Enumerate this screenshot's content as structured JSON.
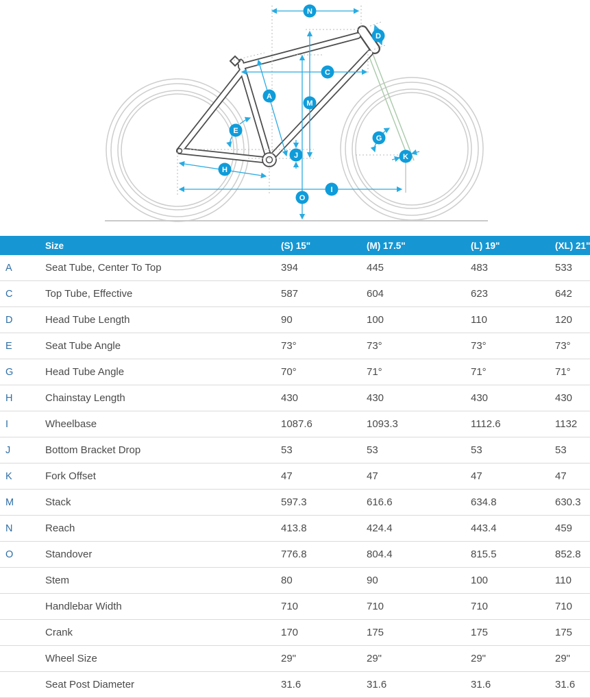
{
  "diagram": {
    "labels": {
      "a": "A",
      "c": "C",
      "d": "D",
      "e": "E",
      "g": "G",
      "h": "H",
      "i": "I",
      "j": "J",
      "k": "K",
      "m": "M",
      "n": "N",
      "o": "O"
    },
    "colors": {
      "dimension_blue": "#29abe2",
      "label_circle_blue": "#0f9cda",
      "frame_outline": "#4d4d4d",
      "wheel_gray": "#cdcdcd",
      "fork_green": "#a9c9a9",
      "reference_gray": "#b9b9b9"
    }
  },
  "table": {
    "header_bg": "#1697d3",
    "columns": [
      {
        "label": "Size"
      },
      {
        "label": "(S) 15\""
      },
      {
        "label": "(M) 17.5\""
      },
      {
        "label": "(L) 19\""
      },
      {
        "label": "(XL) 21\""
      }
    ],
    "rows": [
      {
        "letter": "A",
        "label": "Seat Tube, Center To Top",
        "values": [
          "394",
          "445",
          "483",
          "533"
        ]
      },
      {
        "letter": "C",
        "label": "Top Tube, Effective",
        "values": [
          "587",
          "604",
          "623",
          "642"
        ]
      },
      {
        "letter": "D",
        "label": "Head Tube Length",
        "values": [
          "90",
          "100",
          "110",
          "120"
        ]
      },
      {
        "letter": "E",
        "label": "Seat Tube Angle",
        "values": [
          "73°",
          "73°",
          "73°",
          "73°"
        ]
      },
      {
        "letter": "G",
        "label": "Head Tube Angle",
        "values": [
          "70°",
          "71°",
          "71°",
          "71°"
        ]
      },
      {
        "letter": "H",
        "label": "Chainstay Length",
        "values": [
          "430",
          "430",
          "430",
          "430"
        ]
      },
      {
        "letter": "I",
        "label": "Wheelbase",
        "values": [
          "1087.6",
          "1093.3",
          "1112.6",
          "1132"
        ]
      },
      {
        "letter": "J",
        "label": "Bottom Bracket Drop",
        "values": [
          "53",
          "53",
          "53",
          "53"
        ]
      },
      {
        "letter": "K",
        "label": "Fork Offset",
        "values": [
          "47",
          "47",
          "47",
          "47"
        ]
      },
      {
        "letter": "M",
        "label": "Stack",
        "values": [
          "597.3",
          "616.6",
          "634.8",
          "630.3"
        ]
      },
      {
        "letter": "N",
        "label": "Reach",
        "values": [
          "413.8",
          "424.4",
          "443.4",
          "459"
        ]
      },
      {
        "letter": "O",
        "label": "Standover",
        "values": [
          "776.8",
          "804.4",
          "815.5",
          "852.8"
        ]
      },
      {
        "letter": "",
        "label": "Stem",
        "values": [
          "80",
          "90",
          "100",
          "110"
        ]
      },
      {
        "letter": "",
        "label": "Handlebar Width",
        "values": [
          "710",
          "710",
          "710",
          "710"
        ]
      },
      {
        "letter": "",
        "label": "Crank",
        "values": [
          "170",
          "175",
          "175",
          "175"
        ]
      },
      {
        "letter": "",
        "label": "Wheel Size",
        "values": [
          "29\"",
          "29\"",
          "29\"",
          "29\""
        ]
      },
      {
        "letter": "",
        "label": "Seat Post Diameter",
        "values": [
          "31.6",
          "31.6",
          "31.6",
          "31.6"
        ]
      }
    ]
  }
}
